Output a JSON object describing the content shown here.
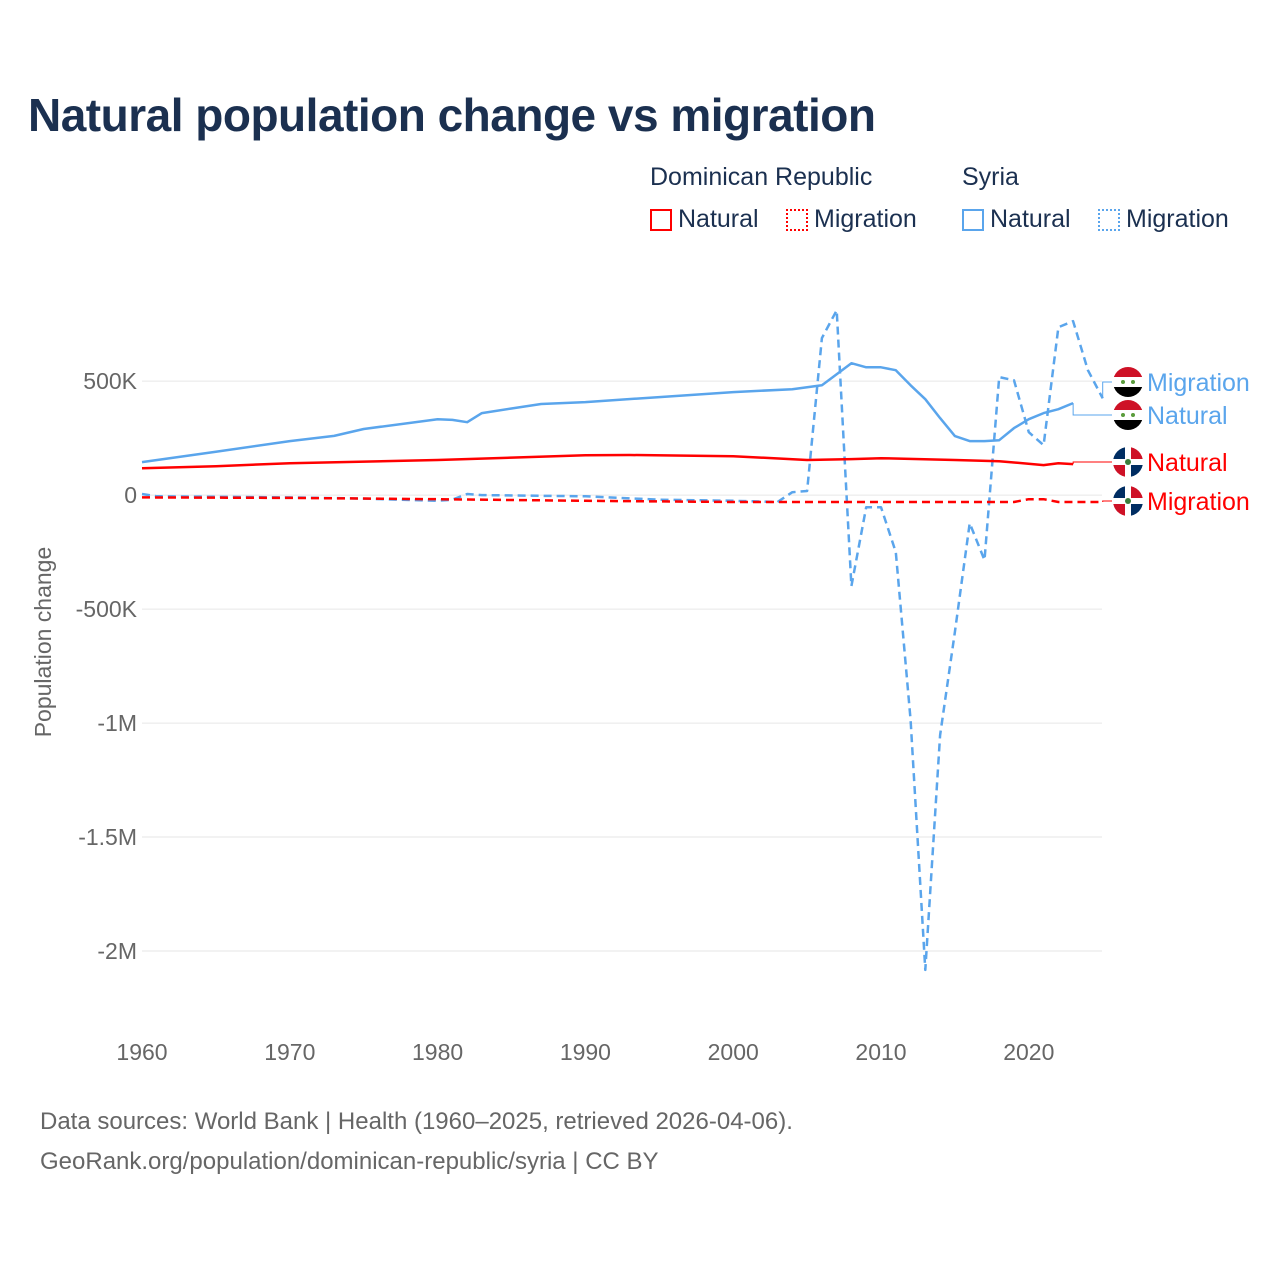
{
  "title": "Natural population change vs migration",
  "legend": {
    "groups": [
      {
        "name": "Dominican Republic",
        "items": [
          "Natural",
          "Migration"
        ],
        "color": "#ff0000"
      },
      {
        "name": "Syria",
        "items": [
          "Natural",
          "Migration"
        ],
        "color": "#5aa5ec"
      }
    ]
  },
  "footer": {
    "line1": "Data sources: World Bank | Health (1960–2025, retrieved 2026-04-06).",
    "line2": "GeoRank.org/population/dominican-republic/syria | CC BY"
  },
  "chart_data": {
    "type": "line",
    "title": "Natural population change vs migration",
    "xlabel": "",
    "ylabel": "Population change",
    "xlim": [
      1960,
      2025
    ],
    "ylim": [
      -2250000,
      900000
    ],
    "xticks": [
      1960,
      1970,
      1980,
      1990,
      2000,
      2010,
      2020
    ],
    "yticks": [
      {
        "v": 500000,
        "l": "500K"
      },
      {
        "v": 0,
        "l": "0"
      },
      {
        "v": -500000,
        "l": "-500K"
      },
      {
        "v": -1000000,
        "l": "-1M"
      },
      {
        "v": -1500000,
        "l": "-1.5M"
      },
      {
        "v": -2000000,
        "l": "-2M"
      }
    ],
    "series": [
      {
        "name": "Syria Migration",
        "label": "Migration",
        "color": "#5aa5ec",
        "dash": true,
        "flag": "syria",
        "x": [
          1960,
          1961,
          1970,
          1975,
          1980,
          1981,
          1982,
          1983,
          1990,
          1995,
          2000,
          2003,
          2004,
          2005,
          2006,
          2007,
          2008,
          2009,
          2010,
          2011,
          2012,
          2013,
          2014,
          2015,
          2016,
          2017,
          2018,
          2019,
          2020,
          2021,
          2022,
          2023,
          2024,
          2025
        ],
        "y": [
          5000,
          -5000,
          -10000,
          -15000,
          -25000,
          -20000,
          5000,
          0,
          -5000,
          -20000,
          -25000,
          -30000,
          13000,
          18000,
          689000,
          811000,
          -399000,
          -53000,
          -53000,
          -250000,
          -987000,
          -2083000,
          -1053000,
          -600000,
          -123000,
          -285000,
          518000,
          504000,
          276000,
          219000,
          737000,
          763000,
          548000,
          425000
        ]
      },
      {
        "name": "Syria Natural",
        "label": "Natural",
        "color": "#5aa5ec",
        "dash": false,
        "flag": "syria",
        "x": [
          1960,
          1965,
          1970,
          1973,
          1975,
          1980,
          1981,
          1982,
          1983,
          1985,
          1987,
          1990,
          1995,
          2000,
          2004,
          2006,
          2008,
          2009,
          2010,
          2011,
          2012,
          2013,
          2014,
          2015,
          2016,
          2017,
          2018,
          2019,
          2020,
          2021,
          2022,
          2023
        ],
        "y": [
          145000,
          190000,
          237000,
          260000,
          290000,
          333000,
          330000,
          320000,
          360000,
          380000,
          400000,
          408000,
          430000,
          452000,
          465000,
          482000,
          579000,
          561000,
          561000,
          548000,
          482000,
          421000,
          338000,
          259000,
          237000,
          237000,
          241000,
          294000,
          333000,
          360000,
          377000,
          404000
        ]
      },
      {
        "name": "Dominican Republic Natural",
        "label": "Natural",
        "color": "#ff0000",
        "dash": false,
        "flag": "dr",
        "x": [
          1960,
          1965,
          1970,
          1980,
          1990,
          1993,
          2000,
          2005,
          2008,
          2010,
          2015,
          2018,
          2021,
          2022,
          2023
        ],
        "y": [
          118000,
          127000,
          140000,
          154000,
          175000,
          176000,
          171000,
          154000,
          158000,
          162000,
          154000,
          149000,
          132000,
          140000,
          136000
        ]
      },
      {
        "name": "Dominican Republic Migration",
        "label": "Migration",
        "color": "#ff0000",
        "dash": true,
        "flag": "dr",
        "x": [
          1960,
          1970,
          1980,
          1990,
          2000,
          2010,
          2019,
          2020,
          2021,
          2022,
          2025
        ],
        "y": [
          -10000,
          -12000,
          -18000,
          -25000,
          -30000,
          -30000,
          -30000,
          -18000,
          -18000,
          -30000,
          -30000
        ]
      }
    ]
  }
}
